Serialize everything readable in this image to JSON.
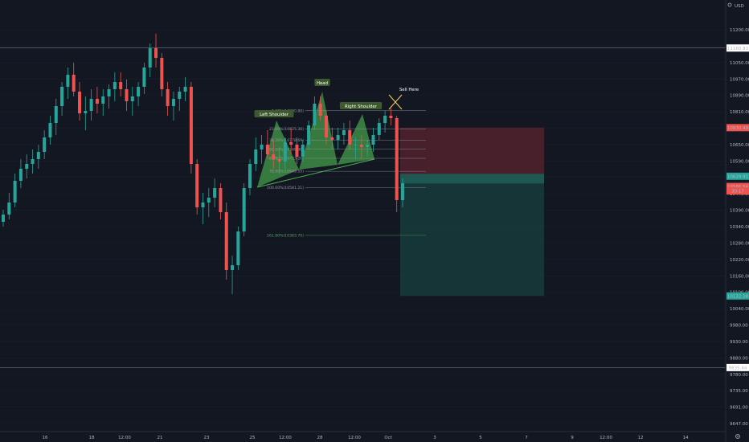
{
  "ui": {
    "currency": "USD",
    "icons": [
      "settings-icon",
      "gear-icon"
    ]
  },
  "colors": {
    "background": "#131722",
    "up": "#26a69a",
    "down": "#ef5350",
    "pattern_fill": "#4caf50",
    "label_bg": "#3c5a2e",
    "stop_zone": "#5b2430",
    "target_zone": "#163b3b"
  },
  "chart_data": {
    "type": "candlestick",
    "title": "",
    "xlabel": "",
    "ylabel": "",
    "ylim": [
      9600,
      11340
    ],
    "x_tick_labels": [
      "16",
      "18",
      "12:00",
      "21",
      "23",
      "25",
      "12:00",
      "28",
      "12:00",
      "Oct",
      "3",
      "5",
      "7",
      "9",
      "12:00",
      "12",
      "14"
    ],
    "y_tick_labels": [
      "11200.00",
      "11100.00",
      "11050.00",
      "10970.00",
      "10890.00",
      "10810.00",
      "10730.00",
      "10650.00",
      "10590.00",
      "10490.00",
      "10440.00",
      "10390.00",
      "10340.00",
      "10280.00",
      "10220.00",
      "10160.00",
      "10100.00",
      "10040.00",
      "9980.00",
      "9930.00",
      "9880.00",
      "9780.00",
      "9735.00",
      "9691.00",
      "9647.00"
    ],
    "series": [
      {
        "values": [
          [
            10440,
            10490,
            10420,
            10470
          ],
          [
            10470,
            10560,
            10450,
            10520
          ],
          [
            10520,
            10640,
            10500,
            10610
          ],
          [
            10610,
            10700,
            10580,
            10660
          ],
          [
            10660,
            10720,
            10620,
            10680
          ],
          [
            10680,
            10740,
            10640,
            10700
          ],
          [
            10700,
            10760,
            10660,
            10730
          ],
          [
            10730,
            10820,
            10700,
            10790
          ],
          [
            10790,
            10880,
            10760,
            10850
          ],
          [
            10850,
            10950,
            10800,
            10920
          ],
          [
            10920,
            11020,
            10880,
            11000
          ],
          [
            11000,
            11080,
            10950,
            11050
          ],
          [
            11050,
            11100,
            10960,
            10980
          ],
          [
            10980,
            11020,
            10860,
            10890
          ],
          [
            10890,
            10960,
            10820,
            10900
          ],
          [
            10900,
            10990,
            10860,
            10950
          ],
          [
            10950,
            11000,
            10890,
            10930
          ],
          [
            10930,
            10990,
            10880,
            10960
          ],
          [
            10960,
            11010,
            10910,
            10990
          ],
          [
            10990,
            11060,
            10940,
            11020
          ],
          [
            11020,
            11060,
            10960,
            10990
          ],
          [
            10990,
            11030,
            10900,
            10940
          ],
          [
            10940,
            11000,
            10880,
            10960
          ],
          [
            10960,
            11020,
            10920,
            11000
          ],
          [
            11000,
            11100,
            10970,
            11080
          ],
          [
            11080,
            11180,
            11040,
            11160
          ],
          [
            11160,
            11220,
            11080,
            11120
          ],
          [
            11120,
            11140,
            10960,
            10990
          ],
          [
            10990,
            11020,
            10880,
            10920
          ],
          [
            10920,
            10980,
            10860,
            10950
          ],
          [
            10950,
            11000,
            10900,
            10980
          ],
          [
            10980,
            11040,
            10940,
            11000
          ],
          [
            11000,
            11020,
            10640,
            10680
          ],
          [
            10680,
            10700,
            10470,
            10500
          ],
          [
            10500,
            10560,
            10430,
            10520
          ],
          [
            10520,
            10580,
            10460,
            10540
          ],
          [
            10540,
            10620,
            10500,
            10580
          ],
          [
            10580,
            10600,
            10450,
            10480
          ],
          [
            10480,
            10520,
            10200,
            10240
          ],
          [
            10240,
            10300,
            10140,
            10260
          ],
          [
            10260,
            10420,
            10240,
            10400
          ],
          [
            10400,
            10600,
            10380,
            10580
          ],
          [
            10580,
            10700,
            10550,
            10680
          ],
          [
            10680,
            10790,
            10650,
            10740
          ],
          [
            10740,
            10800,
            10680,
            10760
          ],
          [
            10760,
            10820,
            10700,
            10720
          ],
          [
            10720,
            10780,
            10660,
            10700
          ],
          [
            10700,
            10750,
            10640,
            10690
          ],
          [
            10690,
            10790,
            10660,
            10770
          ],
          [
            10770,
            10830,
            10720,
            10760
          ],
          [
            10760,
            10790,
            10680,
            10710
          ],
          [
            10710,
            10780,
            10690,
            10760
          ],
          [
            10760,
            10860,
            10740,
            10840
          ],
          [
            10840,
            10960,
            10820,
            10930
          ],
          [
            10930,
            10960,
            10860,
            10880
          ],
          [
            10880,
            10900,
            10760,
            10790
          ],
          [
            10790,
            10830,
            10740,
            10780
          ],
          [
            10780,
            10830,
            10740,
            10800
          ],
          [
            10800,
            10850,
            10760,
            10820
          ],
          [
            10820,
            10860,
            10740,
            10760
          ],
          [
            10760,
            10790,
            10700,
            10760
          ],
          [
            10760,
            10800,
            10700,
            10750
          ],
          [
            10750,
            10780,
            10710,
            10760
          ],
          [
            10760,
            10830,
            10730,
            10800
          ],
          [
            10800,
            10870,
            10780,
            10850
          ],
          [
            10850,
            10900,
            10810,
            10880
          ],
          [
            10880,
            10910,
            10840,
            10870
          ],
          [
            10870,
            10880,
            10480,
            10530
          ],
          [
            10530,
            10620,
            10500,
            10600
          ]
        ]
      }
    ],
    "annotations": {
      "pattern_labels": [
        "Left Shoulder",
        "Head",
        "Right Shoulder",
        "Sell Here"
      ],
      "fib_levels": [
        {
          "label": "0.00%(10900.80)",
          "value": 10900.8
        },
        {
          "label": "23.60%(10825.36)",
          "value": 10825.36
        },
        {
          "label": "38.20%(10778.69)",
          "value": 10778.69
        },
        {
          "label": "50.00%(10740.98)",
          "value": 10740.98
        },
        {
          "label": "61.80%(10703.26)",
          "value": 10703.26
        },
        {
          "label": "78.60%(10649.55)",
          "value": 10649.55
        },
        {
          "label": "100.00%(10581.21)",
          "value": 10581.21
        },
        {
          "label": "161.80%(10383.70)",
          "value": 10383.7
        }
      ],
      "price_badges": [
        {
          "label": "11160.83",
          "value": 11160.83,
          "kind": "neutral"
        },
        {
          "label": "10830.49",
          "value": 10830.49,
          "kind": "down"
        },
        {
          "label": "10628.91",
          "value": 10628.91,
          "kind": "up"
        },
        {
          "label": "10586.54",
          "value": 10586.54,
          "kind": "down"
        },
        {
          "label": "30:17",
          "value": 10568,
          "kind": "down"
        },
        {
          "label": "10132.38",
          "value": 10132.38,
          "kind": "up"
        },
        {
          "label": "9835.44",
          "value": 9835.44,
          "kind": "neutral"
        }
      ],
      "horizontal_lines": [
        11160.83,
        9835.44
      ],
      "position": {
        "entry": 10628.91,
        "stop": 10830.49,
        "target": 10132.38
      }
    }
  }
}
